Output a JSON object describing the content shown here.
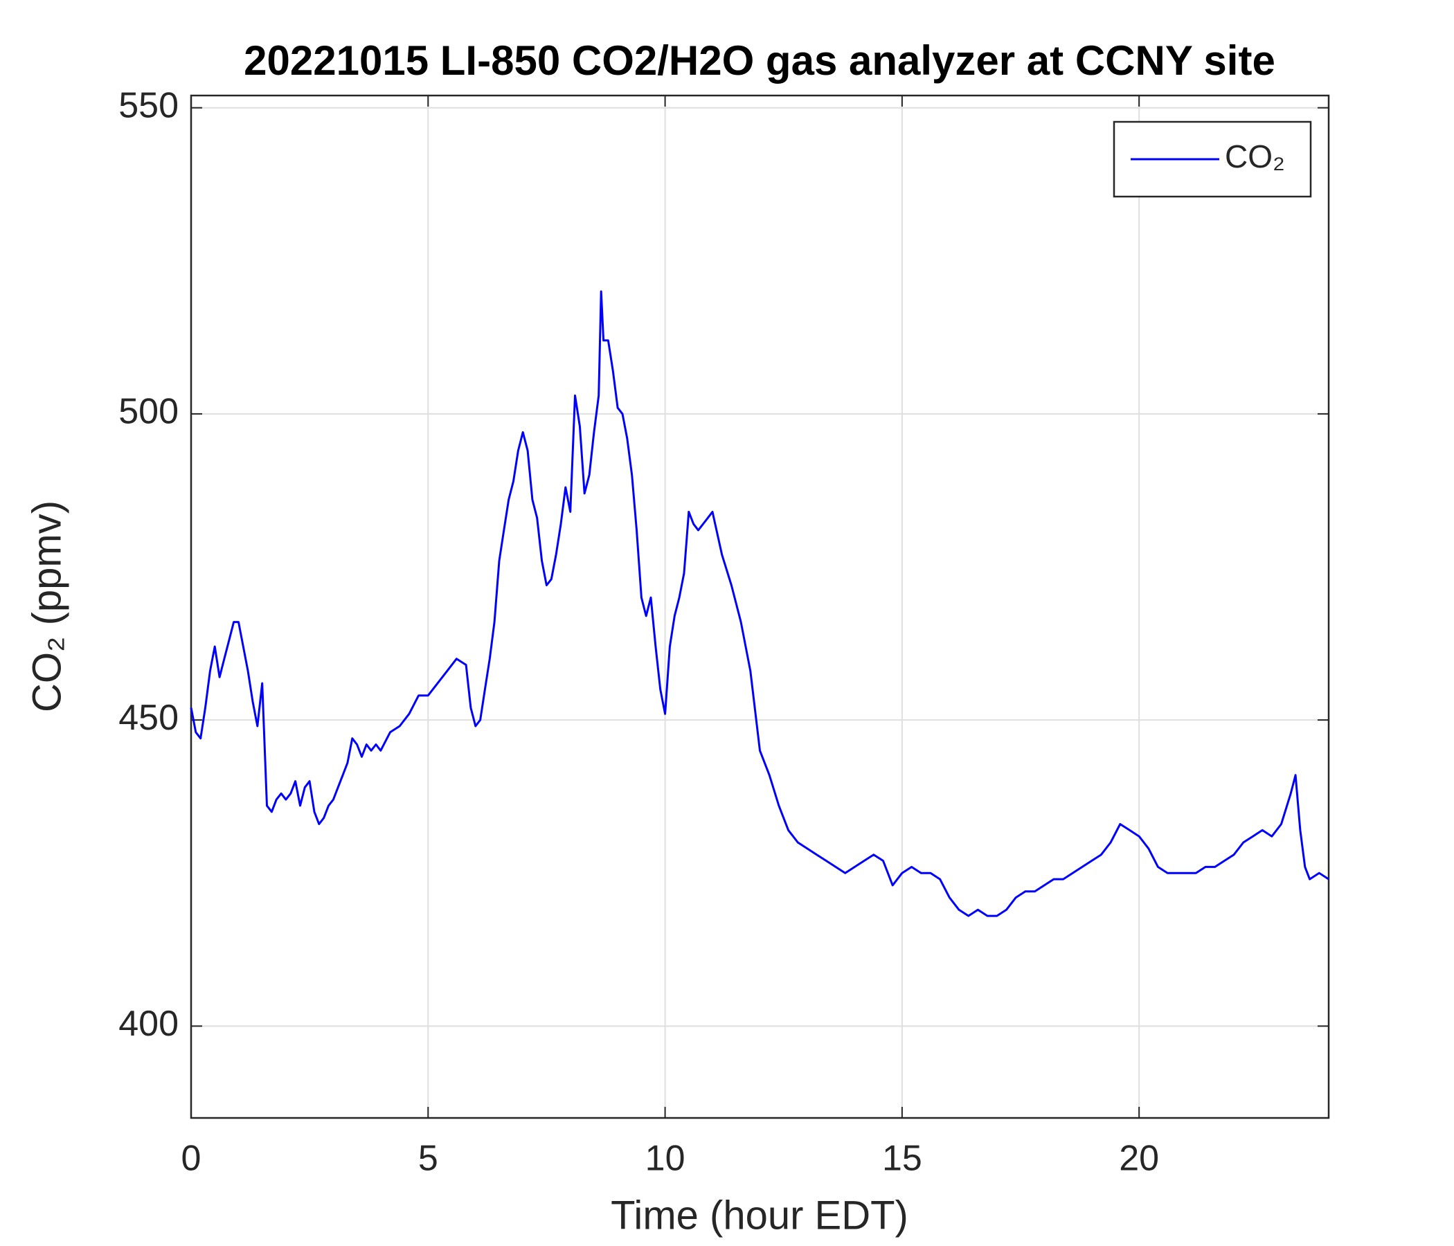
{
  "chart_data": {
    "type": "line",
    "title": "20221015 LI-850 CO2/H2O gas analyzer at CCNY site",
    "x_label": "Time (hour EDT)",
    "y_label": "CO₂ (ppmv)",
    "xlim": [
      0,
      24
    ],
    "xticks": [
      0,
      5,
      10,
      15,
      20
    ],
    "ylim": [
      385,
      552
    ],
    "yticks": [
      400,
      450,
      500,
      550
    ],
    "grid": true,
    "legend": "northeast",
    "x": [
      0,
      0.1,
      0.2,
      0.3,
      0.4,
      0.5,
      0.6,
      0.7,
      0.8,
      0.9,
      1.0,
      1.1,
      1.2,
      1.3,
      1.4,
      1.5,
      1.6,
      1.7,
      1.8,
      1.9,
      2.0,
      2.1,
      2.2,
      2.3,
      2.4,
      2.5,
      2.6,
      2.7,
      2.8,
      2.9,
      3.0,
      3.1,
      3.2,
      3.3,
      3.4,
      3.5,
      3.6,
      3.7,
      3.8,
      3.9,
      4.0,
      4.2,
      4.4,
      4.6,
      4.8,
      5.0,
      5.2,
      5.4,
      5.6,
      5.8,
      5.9,
      6.0,
      6.1,
      6.2,
      6.3,
      6.4,
      6.5,
      6.6,
      6.7,
      6.8,
      6.9,
      7.0,
      7.1,
      7.2,
      7.3,
      7.4,
      7.5,
      7.6,
      7.7,
      7.8,
      7.9,
      8.0,
      8.1,
      8.2,
      8.3,
      8.4,
      8.5,
      8.6,
      8.65,
      8.7,
      8.8,
      8.9,
      9.0,
      9.1,
      9.2,
      9.3,
      9.4,
      9.5,
      9.6,
      9.7,
      9.8,
      9.9,
      10.0,
      10.1,
      10.2,
      10.3,
      10.4,
      10.5,
      10.6,
      10.7,
      10.8,
      10.9,
      11.0,
      11.2,
      11.4,
      11.6,
      11.8,
      12.0,
      12.2,
      12.4,
      12.6,
      12.8,
      13.0,
      13.2,
      13.4,
      13.6,
      13.8,
      14.0,
      14.2,
      14.4,
      14.6,
      14.8,
      15.0,
      15.2,
      15.4,
      15.6,
      15.8,
      16.0,
      16.2,
      16.4,
      16.6,
      16.8,
      17.0,
      17.2,
      17.4,
      17.6,
      17.8,
      18.0,
      18.2,
      18.4,
      18.6,
      18.8,
      19.0,
      19.2,
      19.4,
      19.6,
      19.8,
      20.0,
      20.2,
      20.4,
      20.6,
      20.8,
      21.0,
      21.2,
      21.4,
      21.6,
      21.8,
      22.0,
      22.2,
      22.4,
      22.6,
      22.8,
      23.0,
      23.2,
      23.3,
      23.4,
      23.5,
      23.6,
      23.8,
      24.0
    ],
    "series": [
      {
        "name": "CO₂",
        "color": "#0000ff",
        "values": [
          452,
          448,
          447,
          452,
          458,
          462,
          457,
          460,
          463,
          466,
          466,
          462,
          458,
          453,
          449,
          456,
          436,
          435,
          437,
          438,
          437,
          438,
          440,
          436,
          439,
          440,
          435,
          433,
          434,
          436,
          437,
          439,
          441,
          443,
          447,
          446,
          444,
          446,
          445,
          446,
          445,
          448,
          449,
          451,
          454,
          454,
          456,
          458,
          460,
          459,
          452,
          449,
          450,
          455,
          460,
          466,
          476,
          481,
          486,
          489,
          494,
          497,
          494,
          486,
          483,
          476,
          472,
          473,
          477,
          482,
          488,
          484,
          503,
          498,
          487,
          490,
          497,
          503,
          520,
          512,
          512,
          507,
          501,
          500,
          496,
          490,
          481,
          470,
          467,
          470,
          462,
          455,
          451,
          462,
          467,
          470,
          474,
          484,
          482,
          481,
          482,
          483,
          484,
          477,
          472,
          466,
          458,
          445,
          441,
          436,
          432,
          430,
          429,
          428,
          427,
          426,
          425,
          426,
          427,
          428,
          427,
          423,
          425,
          426,
          425,
          425,
          424,
          421,
          419,
          418,
          419,
          418,
          418,
          419,
          421,
          422,
          422,
          423,
          424,
          424,
          425,
          426,
          427,
          428,
          430,
          433,
          432,
          431,
          429,
          426,
          425,
          425,
          425,
          425,
          426,
          426,
          427,
          428,
          430,
          431,
          432,
          431,
          433,
          438,
          441,
          432,
          426,
          424,
          425,
          424
        ]
      }
    ]
  }
}
